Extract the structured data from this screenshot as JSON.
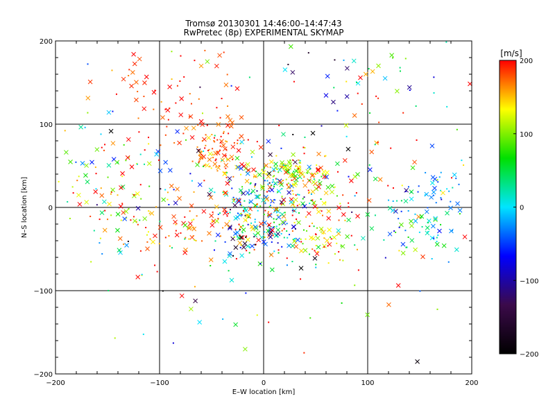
{
  "chart_data": {
    "type": "scatter",
    "title": "Tromsø 20130301 14:46:00–14:47:43",
    "subtitle": "RwPretec (8p) EXPERIMENTAL SKYMAP",
    "xlabel": "E–W location [km]",
    "ylabel": "N–S location [km]",
    "xlim": [
      -200,
      200
    ],
    "ylim": [
      -200,
      200
    ],
    "xticks": [
      -200,
      -100,
      0,
      100,
      200
    ],
    "yticks": [
      -200,
      -100,
      0,
      100,
      200
    ],
    "xtick_labels": [
      "−200",
      "−100",
      "0",
      "100",
      "200"
    ],
    "ytick_labels": [
      "−200",
      "−100",
      "0",
      "100",
      "200"
    ],
    "grid": true,
    "marker_types": [
      "dot",
      "x"
    ],
    "colorbar": {
      "label": "[m/s]",
      "min": -200,
      "max": 200,
      "ticks": [
        200,
        100,
        0,
        -100,
        -200
      ],
      "tick_labels": [
        "200",
        "100",
        "0",
        "−100",
        "−200"
      ],
      "colors": [
        "#000000",
        "#3b0a4a",
        "#0000ff",
        "#00e5ff",
        "#00e000",
        "#ffff00",
        "#ff0000"
      ]
    },
    "clusters": [
      {
        "cx": -45,
        "cy": 70,
        "sx": 15,
        "sy": 15,
        "vmean": 175,
        "vsd": 20,
        "n": 90
      },
      {
        "cx": 20,
        "cy": 45,
        "sx": 18,
        "sy": 8,
        "vmean": 125,
        "vsd": 45,
        "n": 80
      },
      {
        "cx": -5,
        "cy": 20,
        "sx": 25,
        "sy": 18,
        "vmean": 30,
        "vsd": 90,
        "n": 110
      },
      {
        "cx": 0,
        "cy": -25,
        "sx": 22,
        "sy": 20,
        "vmean": 10,
        "vsd": 110,
        "n": 150
      },
      {
        "cx": -70,
        "cy": -20,
        "sx": 40,
        "sy": 20,
        "vmean": 170,
        "vsd": 30,
        "n": 90
      },
      {
        "cx": 45,
        "cy": 20,
        "sx": 25,
        "sy": 20,
        "vmean": 150,
        "vsd": 60,
        "n": 80
      },
      {
        "cx": 55,
        "cy": -40,
        "sx": 20,
        "sy": 18,
        "vmean": 160,
        "vsd": 50,
        "n": 60
      },
      {
        "cx": 150,
        "cy": -20,
        "sx": 20,
        "sy": 22,
        "vmean": 20,
        "vsd": 50,
        "n": 60
      },
      {
        "cx": 165,
        "cy": 20,
        "sx": 15,
        "sy": 15,
        "vmean": -30,
        "vsd": 20,
        "n": 30
      },
      {
        "cx": -140,
        "cy": 30,
        "sx": 30,
        "sy": 40,
        "vmean": 100,
        "vsd": 90,
        "n": 70
      },
      {
        "cx": -90,
        "cy": 130,
        "sx": 40,
        "sy": 35,
        "vmean": 185,
        "vsd": 20,
        "n": 70
      },
      {
        "cx": 0,
        "cy": 0,
        "sx": 120,
        "sy": 80,
        "vmean": 80,
        "vsd": 130,
        "n": 280
      },
      {
        "cx": 110,
        "cy": 160,
        "sx": 50,
        "sy": 30,
        "vmean": 60,
        "vsd": 140,
        "n": 40
      }
    ]
  }
}
